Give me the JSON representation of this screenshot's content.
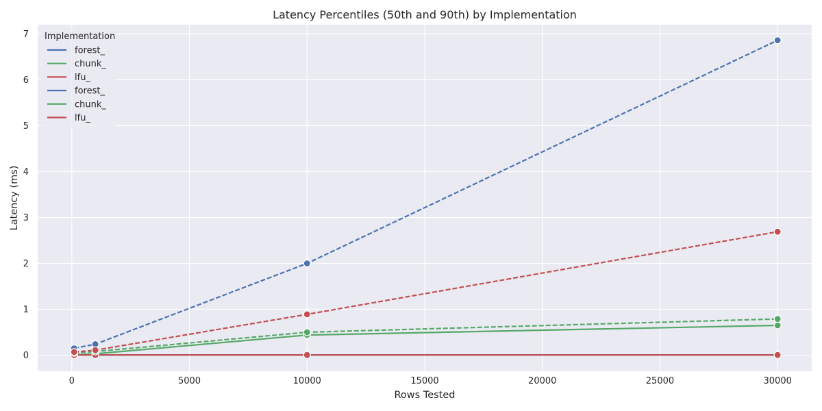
{
  "chart_data": {
    "type": "line",
    "title": "Latency Percentiles (50th and 90th) by Implementation",
    "xlabel": "Rows Tested",
    "ylabel": "Latency (ms)",
    "xlim": [
      -1450,
      31450
    ],
    "ylim": [
      -0.35,
      7.2
    ],
    "xticks": [
      0,
      5000,
      10000,
      15000,
      20000,
      25000,
      30000
    ],
    "yticks": [
      0,
      1,
      2,
      3,
      4,
      5,
      6,
      7
    ],
    "grid": true,
    "legend": {
      "title": "Implementation",
      "placement": "top-left",
      "entries": [
        {
          "label": "forest_",
          "color": "#4c72b0"
        },
        {
          "label": "chunk_",
          "color": "#55a868"
        },
        {
          "label": "lfu_",
          "color": "#c44e52"
        },
        {
          "label": "forest_",
          "color": "#4c72b0"
        },
        {
          "label": "chunk_",
          "color": "#55a868"
        },
        {
          "label": "lfu_",
          "color": "#c44e52"
        }
      ]
    },
    "x": [
      100,
      1000,
      10000,
      30000
    ],
    "series": [
      {
        "name": "forest_",
        "percentile": "50th",
        "color": "#4c72b0",
        "dashed": false,
        "values": [
          0.005,
          0.005,
          0.005,
          0.005
        ]
      },
      {
        "name": "chunk_",
        "percentile": "50th",
        "color": "#55a868",
        "dashed": false,
        "values": [
          0.01,
          0.03,
          0.44,
          0.65
        ]
      },
      {
        "name": "lfu_",
        "percentile": "50th",
        "color": "#c44e52",
        "dashed": false,
        "values": [
          0.005,
          0.005,
          0.005,
          0.005
        ]
      },
      {
        "name": "forest_",
        "percentile": "90th",
        "color": "#4c72b0",
        "dashed": true,
        "values": [
          0.15,
          0.24,
          2.0,
          6.86
        ]
      },
      {
        "name": "chunk_",
        "percentile": "90th",
        "color": "#55a868",
        "dashed": true,
        "values": [
          0.05,
          0.08,
          0.5,
          0.79
        ]
      },
      {
        "name": "lfu_",
        "percentile": "90th",
        "color": "#c44e52",
        "dashed": true,
        "values": [
          0.07,
          0.11,
          0.89,
          2.69
        ]
      }
    ]
  }
}
